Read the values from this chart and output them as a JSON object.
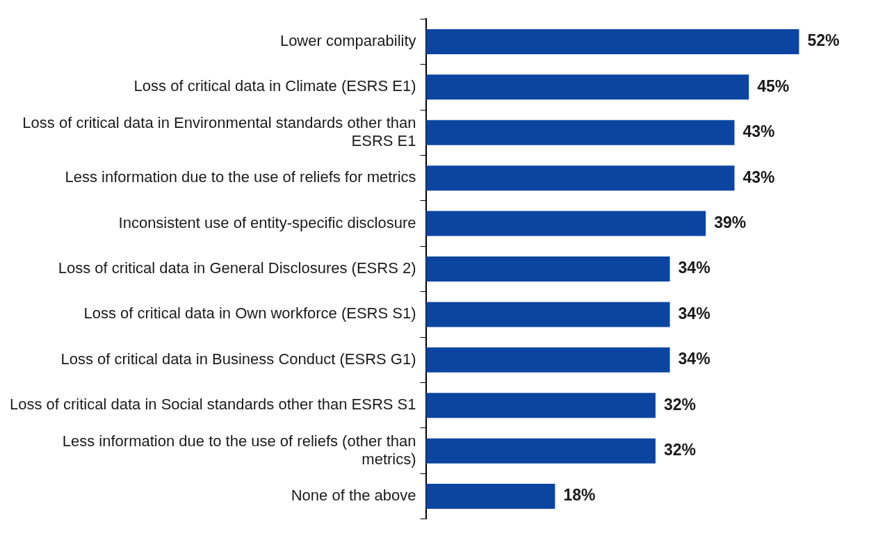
{
  "chart_data": {
    "type": "bar",
    "orientation": "horizontal",
    "categories": [
      "Lower comparability",
      "Loss of critical data in Climate (ESRS E1)",
      "Loss of critical data in Environmental standards other than ESRS E1",
      "Less information due to the use of reliefs for metrics",
      "Inconsistent use of entity-specific disclosure",
      "Loss of critical data in General Disclosures (ESRS 2)",
      "Loss of critical data in Own workforce (ESRS S1)",
      "Loss of critical data in Business Conduct (ESRS G1)",
      "Loss of critical data in Social standards other than ESRS S1",
      "Less information due to the use of reliefs (other than metrics)",
      "None of the above"
    ],
    "values": [
      52,
      45,
      43,
      43,
      39,
      34,
      34,
      34,
      32,
      32,
      18
    ],
    "value_labels": [
      "52%",
      "45%",
      "43%",
      "43%",
      "39%",
      "34%",
      "34%",
      "34%",
      "32%",
      "32%",
      "18%"
    ],
    "color": "#0b45a0",
    "legend": false
  }
}
